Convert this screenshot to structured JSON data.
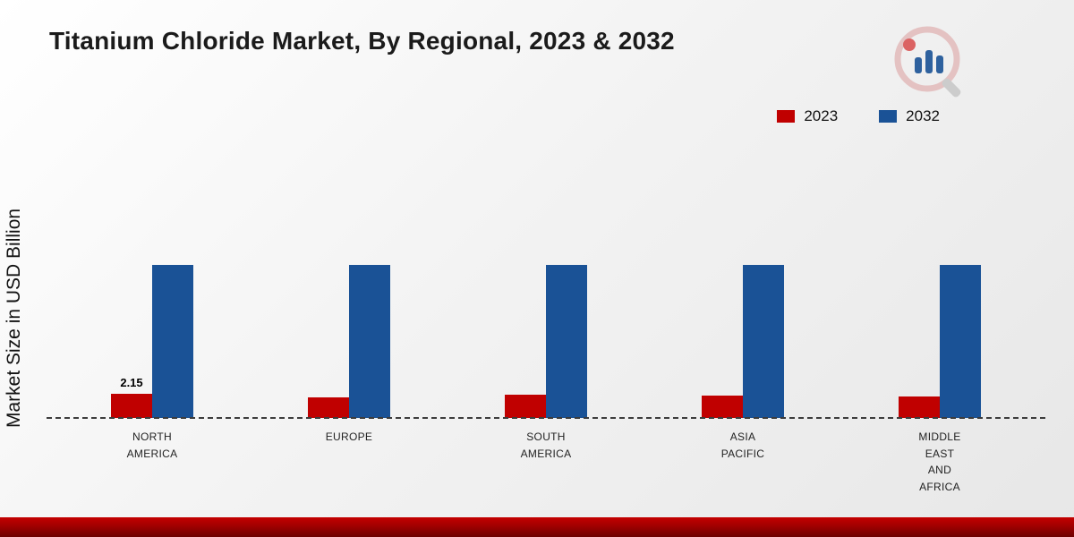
{
  "page": {
    "title": "Titanium Chloride Market, By Regional, 2023 & 2032",
    "ylabel": "Market Size in USD Billion"
  },
  "legend": [
    {
      "label": "2023",
      "color": "#c00000"
    },
    {
      "label": "2032",
      "color": "#1a5296"
    }
  ],
  "chart_data": {
    "type": "bar",
    "title": "Titanium Chloride Market, By Regional, 2023 & 2032",
    "ylabel": "Market Size in USD Billion",
    "xlabel": "",
    "ylim": [
      0,
      16
    ],
    "grid": false,
    "baseline_style": "dashed",
    "legend_position": "top-right",
    "categories": [
      [
        "NORTH",
        "AMERICA"
      ],
      [
        "EUROPE"
      ],
      [
        "SOUTH",
        "AMERICA"
      ],
      [
        "ASIA",
        "PACIFIC"
      ],
      [
        "MIDDLE",
        "EAST",
        "AND",
        "AFRICA"
      ]
    ],
    "series": [
      {
        "name": "2023",
        "color": "#c00000",
        "values": [
          2.15,
          1.8,
          2.1,
          2.0,
          1.95
        ],
        "labels": [
          "2.15",
          "",
          "",
          "",
          ""
        ]
      },
      {
        "name": "2032",
        "color": "#1a5296",
        "values": [
          13.7,
          13.7,
          13.7,
          13.7,
          13.7
        ],
        "labels": [
          "",
          "",
          "",
          "",
          ""
        ]
      }
    ]
  },
  "colors": {
    "bar_2023": "#c00000",
    "bar_2032": "#1a5296",
    "footer_stripe": "#a00000",
    "background_top": "#ffffff",
    "background_bottom": "#e7e7e7"
  }
}
